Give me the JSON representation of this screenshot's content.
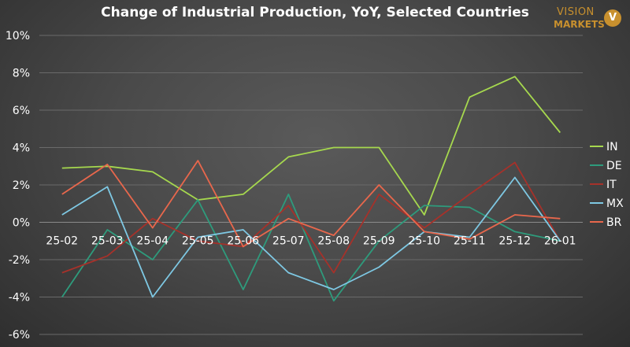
{
  "brand": {
    "line1": "VISION",
    "line2": "MARKETS",
    "badge": "V"
  },
  "chart_data": {
    "type": "line",
    "title": "Change of Industrial Production, YoY, Selected Countries",
    "categories": [
      "25-02",
      "25-03",
      "25-04",
      "25-05",
      "25-06",
      "25-07",
      "25-08",
      "25-09",
      "25-10",
      "25-11",
      "25-12",
      "26-01"
    ],
    "ylim": [
      -6,
      10
    ],
    "yticks": [
      10,
      8,
      6,
      4,
      2,
      0,
      -2,
      -4,
      -6
    ],
    "ytick_labels": [
      "10%",
      "8%",
      "6%",
      "4%",
      "2%",
      "0%",
      "-2%",
      "-4%",
      "-6%"
    ],
    "grid": true,
    "legend_position": "right",
    "series": [
      {
        "name": "IN",
        "color": "#a6d84e",
        "values": [
          2.9,
          3.0,
          2.7,
          1.2,
          1.5,
          3.5,
          4.0,
          4.0,
          0.4,
          6.7,
          7.8,
          4.8
        ]
      },
      {
        "name": "DE",
        "color": "#2e9b7c",
        "values": [
          -4.0,
          -0.4,
          -2.0,
          1.2,
          -3.6,
          1.5,
          -4.2,
          -1.0,
          0.9,
          0.8,
          -0.5,
          -1.0
        ]
      },
      {
        "name": "IT",
        "color": "#a6312a",
        "values": [
          -2.7,
          -1.8,
          0.2,
          -1.0,
          -1.3,
          0.9,
          -2.7,
          1.5,
          -0.3,
          1.5,
          3.2,
          -1.0
        ]
      },
      {
        "name": "MX",
        "color": "#7ec8e3",
        "values": [
          0.4,
          1.9,
          -4.0,
          -0.8,
          -0.4,
          -2.7,
          -3.6,
          -2.4,
          -0.5,
          -0.8,
          2.4,
          -1.0
        ]
      },
      {
        "name": "BR",
        "color": "#e8674c",
        "values": [
          1.5,
          3.1,
          -0.3,
          3.3,
          -1.3,
          0.2,
          -0.7,
          2.0,
          -0.5,
          -0.9,
          0.4,
          0.2
        ]
      }
    ]
  }
}
